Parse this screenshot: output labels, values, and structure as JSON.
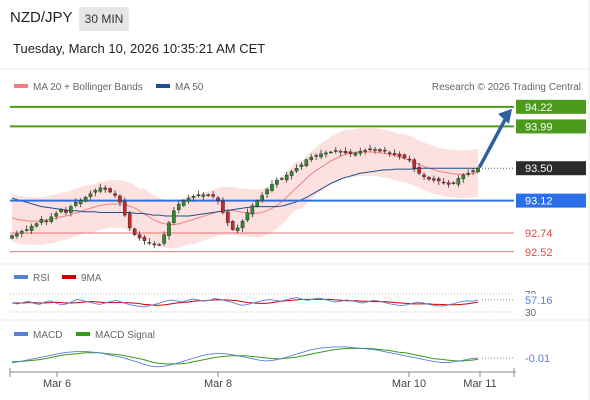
{
  "header": {
    "pair": "NZD/JPY",
    "timeframe": "30 MIN",
    "timestamp": "Tuesday, March 10, 2026 10:35:21 AM CET"
  },
  "legend_main": [
    {
      "label": "MA 20 + Bollinger Bands",
      "color": "#f08080"
    },
    {
      "label": "MA 50",
      "color": "#1f4e8c"
    }
  ],
  "credit": "Research © 2026 Trading Central",
  "legend_rsi": [
    {
      "label": "RSI",
      "color": "#5b7fd6"
    },
    {
      "label": "9MA",
      "color": "#cc0000"
    }
  ],
  "legend_macd": [
    {
      "label": "MACD",
      "color": "#5b7fd6"
    },
    {
      "label": "MACD Signal",
      "color": "#3a9a1a"
    }
  ],
  "chart_data": [
    {
      "type": "candlestick",
      "ylim": [
        92.4,
        94.3
      ],
      "levels": [
        {
          "value": 94.22,
          "label": "94.22",
          "color": "#4c9a1c",
          "style": "line"
        },
        {
          "value": 93.99,
          "label": "93.99",
          "color": "#4c9a1c",
          "style": "line"
        },
        {
          "value": 93.5,
          "label": "93.50",
          "color": "#333333",
          "style": "dotted-current"
        },
        {
          "value": 93.12,
          "label": "93.12",
          "color": "#2f6fe0",
          "style": "line"
        },
        {
          "value": 92.74,
          "label": "92.74",
          "color": "#e04848",
          "style": "thin"
        },
        {
          "value": 92.52,
          "label": "92.52",
          "color": "#e04848",
          "style": "thin"
        }
      ],
      "closes": [
        92.71,
        92.73,
        92.76,
        92.78,
        92.82,
        92.85,
        92.9,
        92.88,
        92.93,
        92.97,
        93.02,
        92.98,
        93.05,
        93.1,
        93.12,
        93.16,
        93.2,
        93.24,
        93.27,
        93.25,
        93.22,
        93.18,
        93.1,
        92.95,
        92.8,
        92.72,
        92.68,
        92.65,
        92.62,
        92.6,
        92.6,
        92.72,
        92.86,
        93.0,
        93.08,
        93.12,
        93.15,
        93.17,
        93.18,
        93.19,
        93.18,
        93.17,
        93.12,
        92.98,
        92.86,
        92.78,
        92.8,
        92.88,
        92.98,
        93.06,
        93.12,
        93.18,
        93.25,
        93.31,
        93.36,
        93.38,
        93.42,
        93.46,
        93.5,
        93.54,
        93.6,
        93.63,
        93.65,
        93.67,
        93.68,
        93.69,
        93.7,
        93.7,
        93.68,
        93.67,
        93.68,
        93.7,
        93.71,
        93.72,
        93.72,
        93.7,
        93.7,
        93.68,
        93.66,
        93.64,
        93.62,
        93.6,
        93.5,
        93.44,
        93.4,
        93.37,
        93.36,
        93.35,
        93.33,
        93.31,
        93.33,
        93.38,
        93.42,
        93.44,
        93.47,
        93.5
      ],
      "ma20": [
        92.92,
        92.9,
        92.89,
        92.88,
        92.88,
        92.88,
        92.89,
        92.9,
        92.91,
        92.93,
        92.94,
        92.96,
        92.98,
        93.0,
        93.02,
        93.04,
        93.06,
        93.07,
        93.08,
        93.08,
        93.08,
        93.07,
        93.05,
        93.02,
        92.98,
        92.94,
        92.9,
        92.87,
        92.85,
        92.84,
        92.84,
        92.85,
        92.87,
        92.89,
        92.91,
        92.93,
        92.95,
        92.97,
        92.99,
        93.0,
        93.0,
        93.0,
        92.99,
        92.98,
        92.97,
        92.97,
        92.98,
        93.0,
        93.03,
        93.07,
        93.12,
        93.18,
        93.24,
        93.3,
        93.36,
        93.42,
        93.47,
        93.51,
        93.55,
        93.59,
        93.62,
        93.65,
        93.67,
        93.68,
        93.69,
        93.69,
        93.69,
        93.69,
        93.68,
        93.67,
        93.66,
        93.64,
        93.62,
        93.6,
        93.57,
        93.55,
        93.52,
        93.5,
        93.48,
        93.46,
        93.45,
        93.44,
        93.43,
        93.43,
        93.43,
        93.44,
        93.45
      ],
      "ma50": [
        93.15,
        93.13,
        93.11,
        93.09,
        93.07,
        93.05,
        93.04,
        93.03,
        93.02,
        93.01,
        93.0,
        93.0,
        92.99,
        92.99,
        92.99,
        92.98,
        92.98,
        92.98,
        92.98,
        92.98,
        92.98,
        92.97,
        92.97,
        92.96,
        92.95,
        92.95,
        92.94,
        92.94,
        92.94,
        92.94,
        92.94,
        92.95,
        92.96,
        92.97,
        92.98,
        92.99,
        93.0,
        93.01,
        93.02,
        93.03,
        93.04,
        93.05,
        93.05,
        93.05,
        93.05,
        93.05,
        93.06,
        93.08,
        93.1,
        93.13,
        93.16,
        93.2,
        93.24,
        93.28,
        93.32,
        93.35,
        93.38,
        93.4,
        93.42,
        93.44,
        93.45,
        93.46,
        93.47,
        93.48,
        93.48,
        93.49,
        93.49,
        93.49,
        93.49,
        93.5,
        93.5,
        93.5,
        93.5,
        93.5,
        93.5,
        93.5,
        93.5,
        93.5,
        93.5,
        93.5
      ],
      "band_halfwidth": 0.28,
      "arrow": {
        "from": 93.5,
        "to": 94.22
      }
    },
    {
      "type": "line",
      "name": "RSI",
      "ylim": [
        30,
        70
      ],
      "ticks": [
        "70",
        "30"
      ],
      "current": "57.16",
      "rsi": [
        50,
        48,
        51,
        54,
        49,
        47,
        52,
        55,
        50,
        46,
        48,
        53,
        58,
        55,
        52,
        49,
        47,
        50,
        53,
        56,
        52,
        48,
        45,
        43,
        41,
        44,
        47,
        50,
        54,
        57,
        55,
        52,
        56,
        59,
        57,
        54,
        56,
        60,
        58,
        55,
        52,
        48,
        45,
        47,
        50,
        53,
        56,
        58,
        56,
        54,
        57,
        60,
        62,
        58,
        56,
        59,
        61,
        58,
        55,
        52,
        54,
        57,
        55,
        52,
        50,
        53,
        56,
        54,
        51,
        48,
        46,
        44,
        46,
        49,
        52,
        50,
        47,
        45,
        43,
        44,
        47,
        50,
        53,
        55,
        54,
        57.16
      ],
      "ma9": [
        50,
        50,
        50,
        51,
        51,
        50,
        50,
        51,
        52,
        51,
        50,
        50,
        51,
        52,
        53,
        53,
        52,
        51,
        51,
        51,
        51,
        51,
        50,
        49,
        47,
        46,
        45,
        45,
        46,
        48,
        50,
        51,
        52,
        54,
        55,
        55,
        56,
        57,
        57,
        57,
        56,
        55,
        53,
        51,
        50,
        49,
        49,
        50,
        52,
        54,
        55,
        56,
        57,
        58,
        58,
        58,
        58,
        58,
        58,
        57,
        56,
        55,
        55,
        55,
        54,
        54,
        53,
        53,
        53,
        52,
        51,
        50,
        49,
        48,
        48,
        48,
        48,
        47,
        47,
        46,
        46,
        46,
        47,
        48,
        50,
        52
      ]
    },
    {
      "type": "line",
      "name": "MACD",
      "current": "-0.01",
      "macd": [
        -0.08,
        -0.06,
        -0.04,
        -0.02,
        0.0,
        0.02,
        0.04,
        0.06,
        0.07,
        0.08,
        0.08,
        0.07,
        0.06,
        0.04,
        0.02,
        0.0,
        -0.03,
        -0.06,
        -0.09,
        -0.12,
        -0.13,
        -0.12,
        -0.1,
        -0.07,
        -0.04,
        -0.01,
        0.02,
        0.04,
        0.05,
        0.05,
        0.04,
        0.02,
        0.0,
        -0.02,
        -0.04,
        -0.05,
        -0.04,
        -0.02,
        0.01,
        0.04,
        0.07,
        0.1,
        0.12,
        0.13,
        0.14,
        0.14,
        0.14,
        0.13,
        0.12,
        0.11,
        0.1,
        0.08,
        0.06,
        0.04,
        0.02,
        0.0,
        -0.02,
        -0.04,
        -0.06,
        -0.07,
        -0.07,
        -0.06,
        -0.04,
        -0.02,
        -0.01
      ],
      "signal": [
        -0.06,
        -0.06,
        -0.05,
        -0.04,
        -0.03,
        -0.01,
        0.01,
        0.03,
        0.04,
        0.05,
        0.06,
        0.06,
        0.06,
        0.05,
        0.04,
        0.03,
        0.01,
        -0.01,
        -0.03,
        -0.06,
        -0.08,
        -0.09,
        -0.09,
        -0.09,
        -0.08,
        -0.06,
        -0.04,
        -0.02,
        0.0,
        0.01,
        0.02,
        0.02,
        0.02,
        0.01,
        0.0,
        -0.01,
        -0.02,
        -0.02,
        -0.01,
        0.0,
        0.02,
        0.04,
        0.06,
        0.08,
        0.1,
        0.11,
        0.12,
        0.12,
        0.12,
        0.12,
        0.11,
        0.1,
        0.09,
        0.07,
        0.06,
        0.04,
        0.02,
        0.0,
        -0.02,
        -0.03,
        -0.04,
        -0.05,
        -0.05,
        -0.04,
        -0.03
      ],
      "ylim": [
        -0.16,
        0.18
      ]
    }
  ],
  "xaxis": {
    "ticks": [
      "Mar 6",
      "Mar 8",
      "Mar 10",
      "Mar 11"
    ]
  }
}
